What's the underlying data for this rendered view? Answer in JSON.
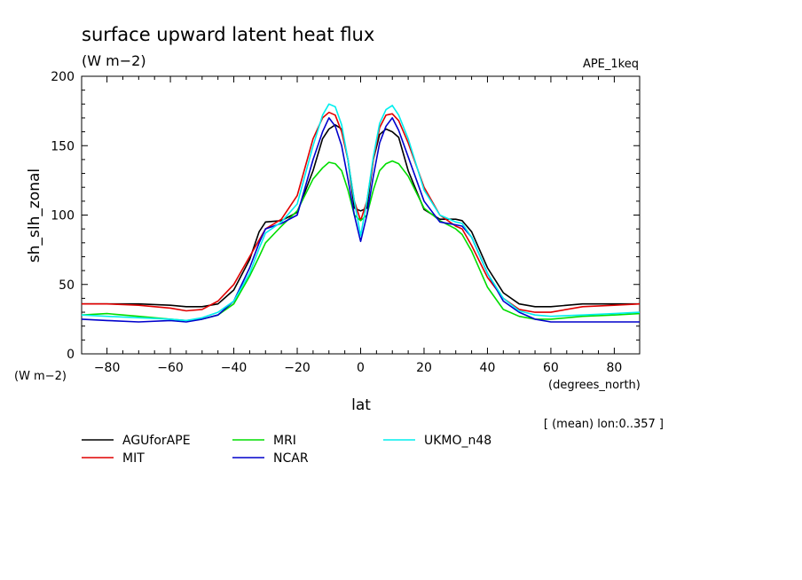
{
  "chart_data": {
    "type": "line",
    "title": "surface upward latent heat flux",
    "units_label": "(W m−2)",
    "experiment_label": "APE_1keq",
    "ylabel": "sh_slh_zonal",
    "yunits_label": "(W m−2)",
    "xlabel": "lat",
    "xunits_label": "(degrees_north)",
    "note": "[ (mean) lon:0..357 ]",
    "xlim": [
      -88,
      88
    ],
    "ylim": [
      0,
      200
    ],
    "xticks": [
      -80,
      -60,
      -40,
      -20,
      0,
      20,
      40,
      60,
      80
    ],
    "xtick_labels": [
      "−80",
      "−60",
      "−40",
      "−20",
      "0",
      "20",
      "40",
      "60",
      "80"
    ],
    "yticks": [
      0,
      50,
      100,
      150,
      200
    ],
    "ytick_labels": [
      "0",
      "50",
      "100",
      "150",
      "200"
    ],
    "grid": false,
    "legend_position": "bottom",
    "x": [
      -88,
      -80,
      -70,
      -60,
      -55,
      -50,
      -45,
      -40,
      -35,
      -32,
      -30,
      -25,
      -20,
      -15,
      -12,
      -10,
      -8,
      -6,
      -4,
      -2,
      0,
      2,
      4,
      6,
      8,
      10,
      12,
      15,
      20,
      25,
      30,
      32,
      35,
      40,
      45,
      50,
      55,
      60,
      70,
      80,
      88
    ],
    "series": [
      {
        "name": "AGUforAPE",
        "color": "#000000",
        "values": [
          36,
          36,
          36,
          35,
          34,
          34,
          36,
          46,
          68,
          88,
          95,
          96,
          102,
          132,
          155,
          162,
          165,
          162,
          140,
          105,
          103,
          105,
          140,
          158,
          162,
          160,
          156,
          132,
          104,
          97,
          97,
          96,
          88,
          62,
          44,
          36,
          34,
          34,
          36,
          36,
          36
        ]
      },
      {
        "name": "MIT",
        "color": "#e00000",
        "values": [
          36,
          36,
          35,
          33,
          31,
          32,
          38,
          50,
          70,
          82,
          90,
          97,
          114,
          155,
          170,
          174,
          172,
          160,
          140,
          110,
          96,
          110,
          140,
          163,
          172,
          173,
          168,
          152,
          120,
          100,
          92,
          90,
          78,
          55,
          40,
          32,
          30,
          30,
          34,
          35,
          36
        ]
      },
      {
        "name": "MRI",
        "color": "#00dd00",
        "values": [
          28,
          29,
          27,
          25,
          24,
          25,
          28,
          36,
          56,
          70,
          80,
          92,
          103,
          126,
          134,
          138,
          137,
          132,
          118,
          100,
          96,
          100,
          118,
          132,
          137,
          139,
          137,
          128,
          105,
          96,
          90,
          86,
          74,
          48,
          32,
          27,
          25,
          25,
          27,
          28,
          29
        ]
      },
      {
        "name": "NCAR",
        "color": "#0000cc",
        "values": [
          25,
          24,
          23,
          24,
          23,
          25,
          28,
          38,
          62,
          80,
          90,
          94,
          100,
          140,
          160,
          170,
          164,
          150,
          126,
          100,
          81,
          100,
          128,
          152,
          164,
          170,
          161,
          142,
          110,
          95,
          93,
          92,
          84,
          58,
          38,
          30,
          25,
          23,
          23,
          23,
          23
        ]
      },
      {
        "name": "UKMO_n48",
        "color": "#00eeee",
        "values": [
          28,
          27,
          26,
          25,
          24,
          26,
          30,
          38,
          58,
          76,
          87,
          95,
          108,
          150,
          172,
          180,
          178,
          165,
          140,
          110,
          85,
          110,
          142,
          166,
          176,
          179,
          172,
          155,
          118,
          100,
          95,
          94,
          84,
          58,
          40,
          31,
          28,
          27,
          28,
          29,
          30
        ]
      }
    ]
  }
}
